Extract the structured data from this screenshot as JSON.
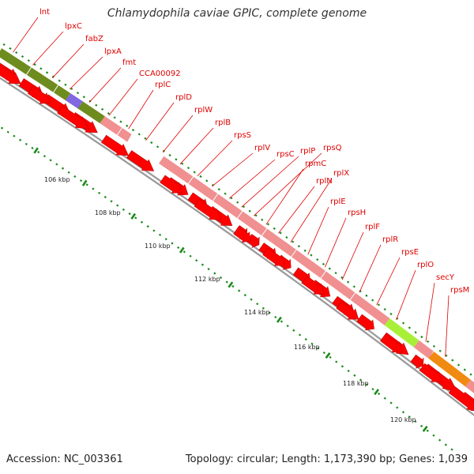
{
  "header": {
    "title": "Chlamydophila caviae GPIC, complete genome"
  },
  "footer": {
    "accession": "Accession: NC_003361",
    "topology": "Topology: circular; Length: 1,173,390 bp; Genes: 1,039"
  },
  "colors": {
    "gene_label": "#e00000",
    "cds_arrow": "#ff0000",
    "backbone": "#9a9a9a",
    "tick": "#1a8a1a",
    "cat_olive": "#6e8c1e",
    "cat_purple": "#8068e0",
    "cat_pink": "#f09090",
    "cat_lime": "#a8f038",
    "cat_orange": "#f08a10",
    "cat_cyan": "#20c8c8"
  },
  "gene_labels": [
    "lnt",
    "lpxC",
    "fabZ",
    "lpxA",
    "fmt",
    "CCA00092",
    "rplC",
    "rplD",
    "rplW",
    "rplB",
    "rpsS",
    "rplV",
    "rpsC",
    "rplP",
    "rpsQ",
    "rpmC",
    "rplN",
    "rplX",
    "rplE",
    "rpsH",
    "rplF",
    "rplR",
    "rpsE",
    "rplO",
    "secY",
    "rpsM"
  ],
  "scale_labels": [
    "106 kbp",
    "108 kbp",
    "110 kbp",
    "112 kbp",
    "114 kbp",
    "116 kbp",
    "118 kbp",
    "120 kbp"
  ]
}
